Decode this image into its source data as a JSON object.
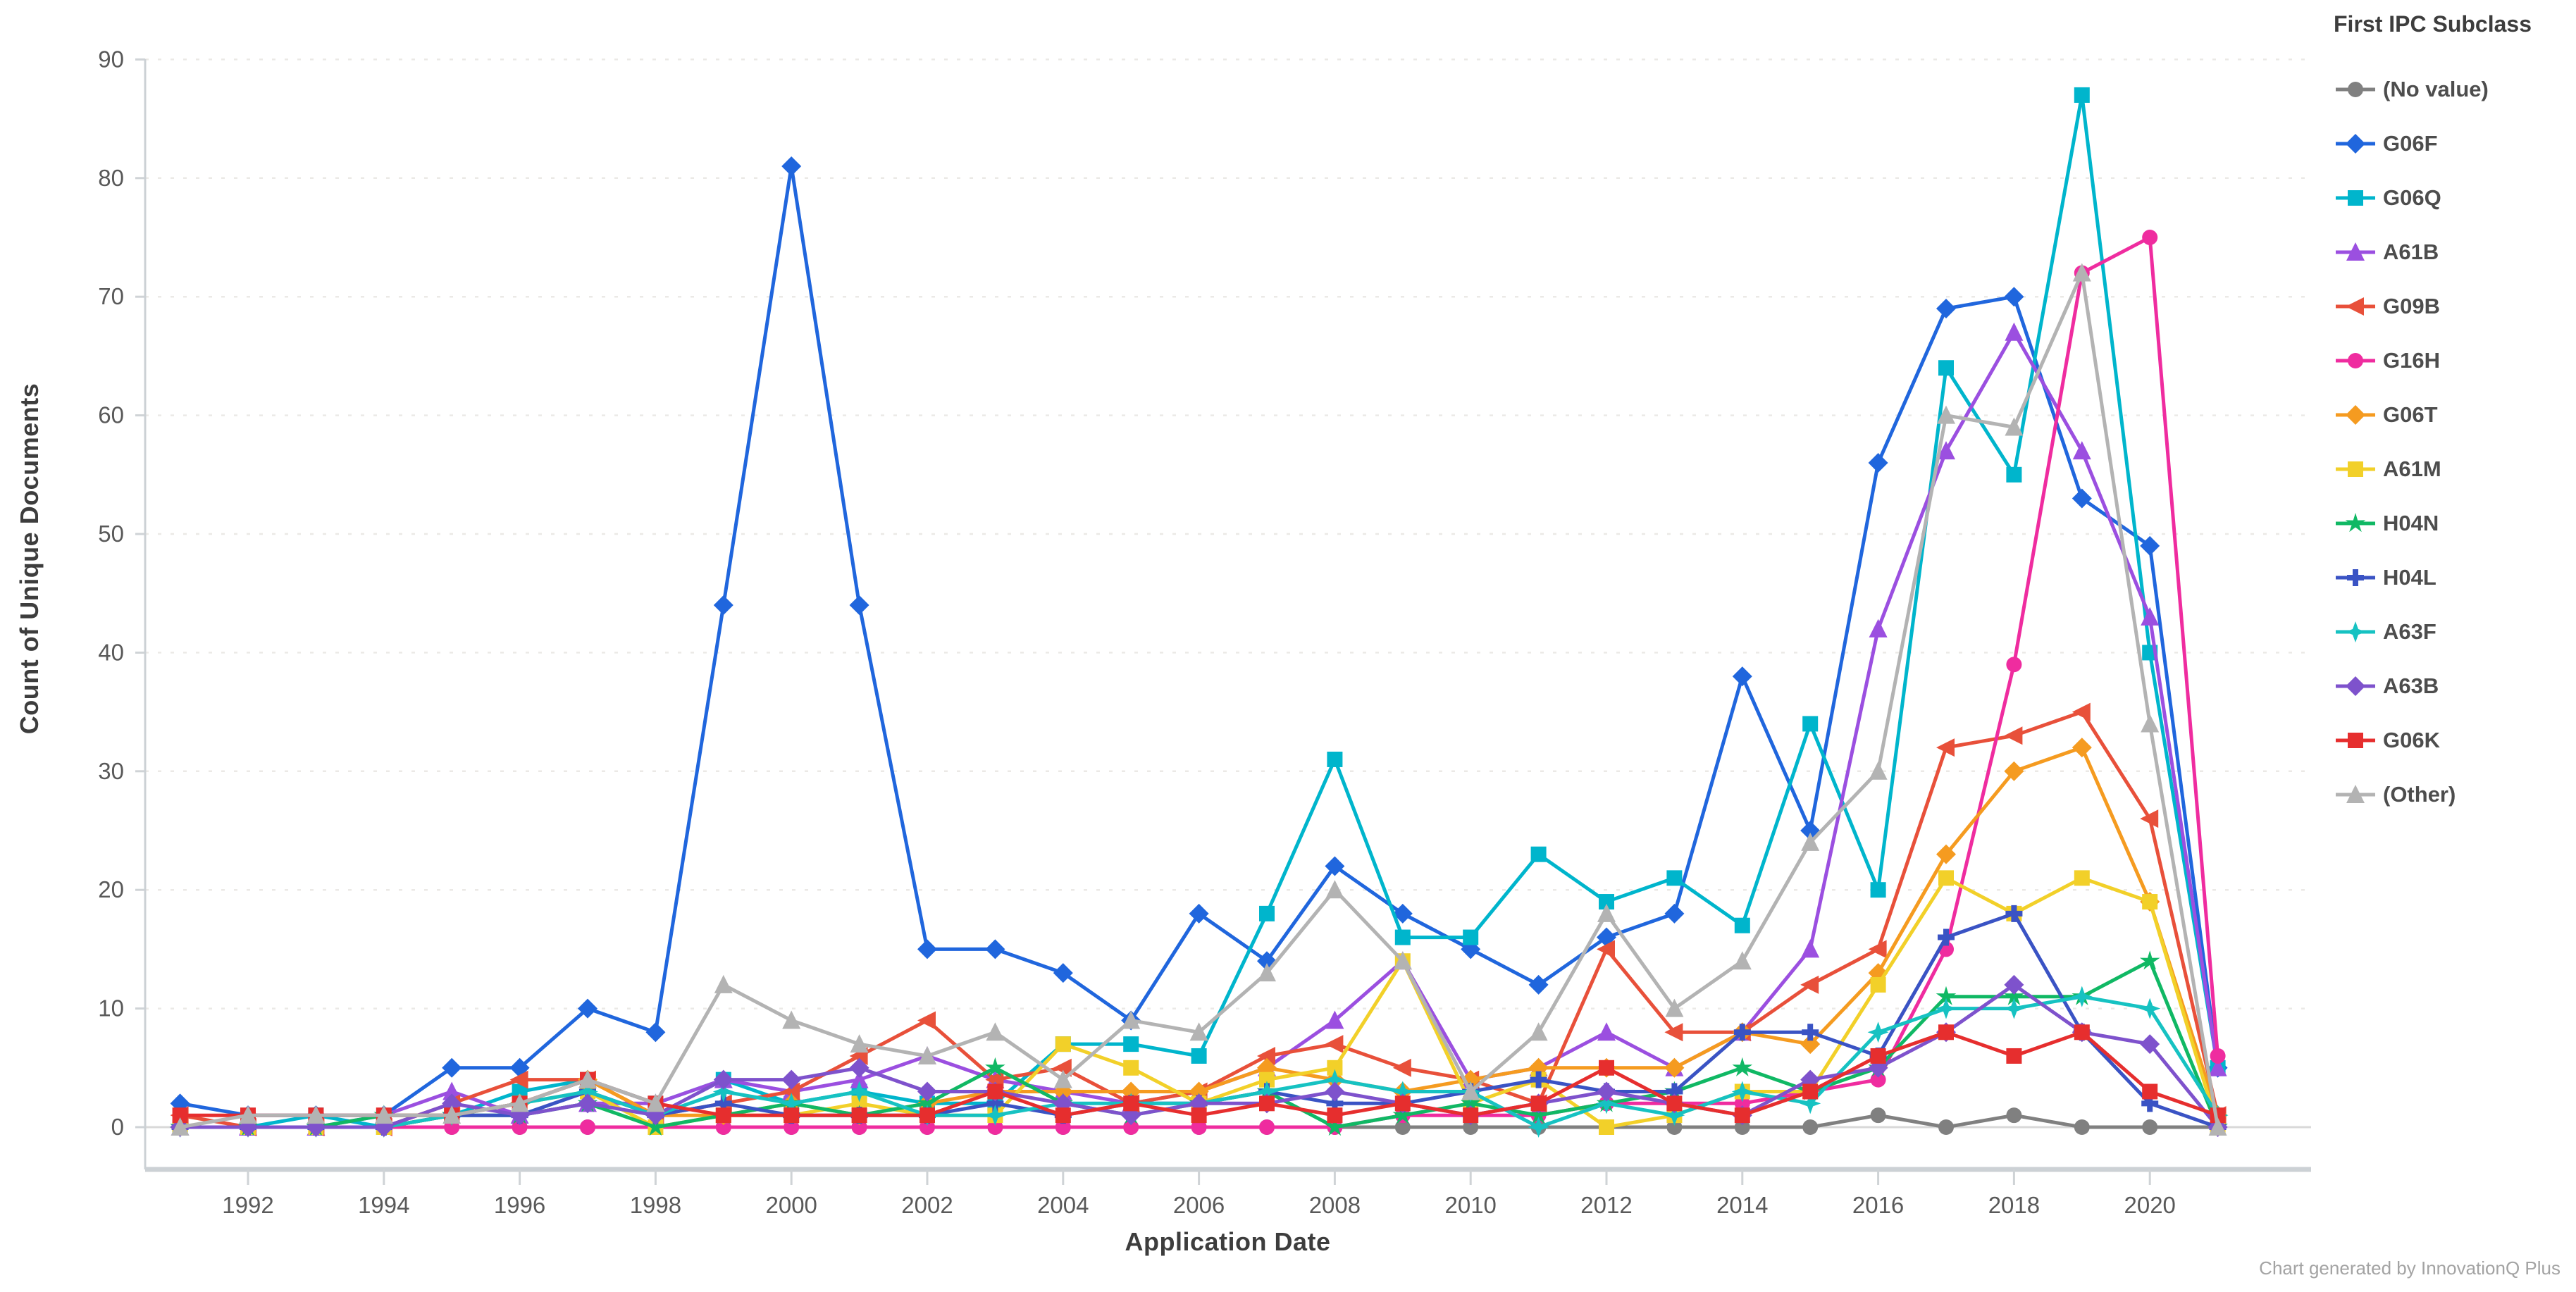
{
  "page": {
    "background": "#ffffff"
  },
  "legend": {
    "title": "First IPC Subclass"
  },
  "footer": {
    "credit": "Chart generated by InnovationQ Plus"
  },
  "chart_data": {
    "type": "line",
    "title": "",
    "xlabel": "Application Date",
    "ylabel": "Count of Unique Documents",
    "x": [
      1991,
      1992,
      1993,
      1994,
      1995,
      1996,
      1997,
      1998,
      1999,
      2000,
      2001,
      2002,
      2003,
      2004,
      2005,
      2006,
      2007,
      2008,
      2009,
      2010,
      2011,
      2012,
      2013,
      2014,
      2015,
      2016,
      2017,
      2018,
      2019,
      2020,
      2021
    ],
    "x_ticks": [
      1992,
      1994,
      1996,
      1998,
      2000,
      2002,
      2004,
      2006,
      2008,
      2010,
      2012,
      2014,
      2016,
      2018,
      2020
    ],
    "y_ticks": [
      0,
      10,
      20,
      30,
      40,
      50,
      60,
      70,
      80,
      90
    ],
    "ylim": [
      0,
      90
    ],
    "grid": "horizontal-dashed",
    "legend_position": "right",
    "colors": {
      "grid": "#ebe9e6",
      "zero_line": "#d9d9d9",
      "axis_line": "#ccd1d5",
      "tick": "#cfd3d6",
      "tick_text": "#595959"
    },
    "series": [
      {
        "name": "(No value)",
        "color": "#808080",
        "marker": "circle",
        "values": [
          0,
          0,
          0,
          0,
          0,
          0,
          0,
          0,
          0,
          0,
          0,
          0,
          0,
          0,
          0,
          0,
          0,
          0,
          0,
          0,
          0,
          0,
          0,
          0,
          0,
          1,
          0,
          1,
          0,
          0,
          0
        ]
      },
      {
        "name": "G06F",
        "color": "#2066dd",
        "marker": "diamond",
        "values": [
          2,
          1,
          1,
          1,
          5,
          5,
          10,
          8,
          44,
          81,
          44,
          15,
          15,
          13,
          9,
          18,
          14,
          22,
          18,
          15,
          12,
          16,
          18,
          38,
          25,
          56,
          69,
          70,
          53,
          49,
          5
        ]
      },
      {
        "name": "G06Q",
        "color": "#00b5cc",
        "marker": "square",
        "values": [
          0,
          0,
          1,
          0,
          1,
          3,
          4,
          2,
          4,
          2,
          3,
          2,
          2,
          7,
          7,
          6,
          18,
          31,
          16,
          16,
          23,
          19,
          21,
          17,
          34,
          20,
          64,
          55,
          87,
          40,
          5
        ]
      },
      {
        "name": "A61B",
        "color": "#9b4fe0",
        "marker": "triangle-up",
        "values": [
          0,
          0,
          0,
          1,
          3,
          1,
          2,
          2,
          4,
          3,
          4,
          6,
          4,
          3,
          2,
          3,
          5,
          9,
          14,
          4,
          5,
          8,
          5,
          8,
          15,
          42,
          57,
          67,
          57,
          43,
          5
        ]
      },
      {
        "name": "G09B",
        "color": "#e8503a",
        "marker": "triangle-left",
        "values": [
          1,
          0,
          0,
          0,
          2,
          4,
          4,
          1,
          2,
          3,
          6,
          9,
          4,
          5,
          2,
          3,
          6,
          7,
          5,
          4,
          2,
          15,
          8,
          8,
          12,
          15,
          32,
          33,
          35,
          26,
          1
        ]
      },
      {
        "name": "G16H",
        "color": "#ef2c9f",
        "marker": "circle",
        "values": [
          0,
          0,
          0,
          0,
          0,
          0,
          0,
          0,
          0,
          0,
          0,
          0,
          0,
          0,
          0,
          0,
          0,
          0,
          1,
          1,
          1,
          2,
          2,
          2,
          3,
          4,
          15,
          39,
          72,
          75,
          6
        ]
      },
      {
        "name": "G06T",
        "color": "#f59b20",
        "marker": "diamond",
        "values": [
          0,
          0,
          0,
          0,
          1,
          2,
          4,
          1,
          1,
          2,
          1,
          2,
          3,
          3,
          3,
          3,
          5,
          4,
          3,
          4,
          5,
          5,
          5,
          8,
          7,
          13,
          23,
          30,
          32,
          19,
          1
        ]
      },
      {
        "name": "A61M",
        "color": "#f2d029",
        "marker": "square",
        "values": [
          0,
          0,
          0,
          0,
          1,
          2,
          3,
          0,
          1,
          1,
          2,
          1,
          1,
          7,
          5,
          2,
          4,
          5,
          14,
          2,
          4,
          0,
          1,
          3,
          3,
          12,
          21,
          18,
          21,
          19,
          0
        ]
      },
      {
        "name": "H04N",
        "color": "#10b864",
        "marker": "star5",
        "values": [
          0,
          0,
          0,
          1,
          1,
          1,
          2,
          0,
          1,
          2,
          1,
          2,
          5,
          2,
          1,
          2,
          3,
          0,
          1,
          2,
          1,
          2,
          3,
          5,
          3,
          5,
          11,
          11,
          11,
          14,
          0
        ]
      },
      {
        "name": "H04L",
        "color": "#3a53c4",
        "marker": "plus",
        "values": [
          0,
          0,
          0,
          0,
          1,
          1,
          3,
          1,
          2,
          1,
          1,
          1,
          2,
          1,
          2,
          2,
          3,
          2,
          2,
          3,
          4,
          3,
          3,
          8,
          8,
          6,
          16,
          18,
          8,
          2,
          0
        ]
      },
      {
        "name": "A63F",
        "color": "#16c2c2",
        "marker": "star4",
        "values": [
          0,
          0,
          0,
          0,
          1,
          2,
          3,
          1,
          3,
          2,
          3,
          1,
          1,
          2,
          2,
          2,
          3,
          4,
          3,
          3,
          0,
          2,
          1,
          3,
          2,
          8,
          10,
          10,
          11,
          10,
          1
        ]
      },
      {
        "name": "A63B",
        "color": "#7e52cc",
        "marker": "diamond",
        "values": [
          0,
          0,
          0,
          0,
          2,
          1,
          2,
          1,
          4,
          4,
          5,
          3,
          3,
          2,
          1,
          2,
          2,
          3,
          2,
          1,
          2,
          3,
          2,
          1,
          4,
          5,
          8,
          12,
          8,
          7,
          0
        ]
      },
      {
        "name": "G06K",
        "color": "#e62e2e",
        "marker": "square",
        "values": [
          1,
          1,
          1,
          1,
          1,
          2,
          4,
          2,
          1,
          1,
          1,
          1,
          3,
          1,
          2,
          1,
          2,
          1,
          2,
          1,
          2,
          5,
          2,
          1,
          3,
          6,
          8,
          6,
          8,
          3,
          1
        ]
      },
      {
        "name": "(Other)",
        "color": "#b3b3b3",
        "marker": "triangle-up",
        "values": [
          0,
          1,
          1,
          1,
          1,
          2,
          4,
          2,
          12,
          9,
          7,
          6,
          8,
          4,
          9,
          8,
          13,
          20,
          14,
          3,
          8,
          18,
          10,
          14,
          24,
          30,
          60,
          59,
          72,
          34,
          0
        ]
      }
    ]
  }
}
